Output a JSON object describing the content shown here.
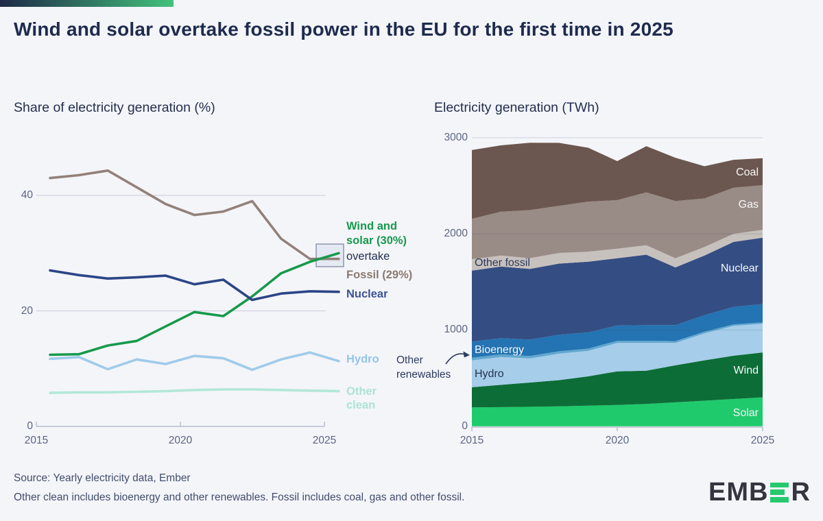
{
  "header": {
    "title": "Wind and solar overtake fossil power in the EU for the first time in 2025"
  },
  "footer": {
    "source": "Source: Yearly electricity data, Ember",
    "note": "Other clean includes bioenergy and other renewables. Fossil includes coal, gas and other fossil.",
    "logo_prefix": "EMB",
    "logo_suffix": "R"
  },
  "colors": {
    "background": "#f4f5f9",
    "title_text": "#1e2b4e",
    "axis_text": "#5a6582",
    "grid": "#d0d4df",
    "grid_overlay": "rgba(60,72,105,0.15)",
    "axis_line": "#b4bbca",
    "annotation_dark": "#2c3a5c",
    "highlight_box_fill": "#dbe1ee",
    "highlight_box_stroke": "#8089a5",
    "logo_green": "#26c96d",
    "header_gradient_start": "#1f2948",
    "header_gradient_end": "#42c27b"
  },
  "chart_data": [
    {
      "type": "line",
      "title": "Share of electricity generation (%)",
      "x": [
        2015,
        2016,
        2017,
        2018,
        2019,
        2020,
        2021,
        2022,
        2023,
        2024,
        2025
      ],
      "series": [
        {
          "name": "Fossil",
          "color": "#92817a",
          "values": [
            43.0,
            43.5,
            44.3,
            41.4,
            38.5,
            36.6,
            37.2,
            39.0,
            32.5,
            29.0,
            29.0
          ]
        },
        {
          "name": "Wind and solar",
          "color": "#179a4b",
          "values": [
            12.4,
            12.5,
            14.0,
            14.8,
            17.3,
            19.8,
            19.1,
            22.5,
            26.5,
            28.5,
            30.0
          ]
        },
        {
          "name": "Nuclear",
          "color": "#2c4586",
          "values": [
            27.0,
            26.2,
            25.6,
            25.8,
            26.1,
            24.6,
            25.4,
            21.9,
            23.0,
            23.4,
            23.3
          ]
        },
        {
          "name": "Hydro",
          "color": "#9fcbea",
          "values": [
            11.7,
            12.0,
            9.9,
            11.6,
            10.8,
            12.2,
            11.8,
            9.8,
            11.6,
            12.8,
            11.3
          ]
        },
        {
          "name": "Other clean",
          "color": "#b2e8d6",
          "values": [
            5.8,
            5.9,
            5.9,
            6.0,
            6.1,
            6.3,
            6.4,
            6.4,
            6.3,
            6.2,
            6.1
          ]
        }
      ],
      "ylim": [
        0,
        47
      ],
      "yticks": [
        0,
        20,
        40
      ],
      "ytick_labels": [
        "0",
        "20",
        "40"
      ],
      "xtick_labels": [
        "2015",
        "2020",
        "2025"
      ],
      "grid": "horizontal only",
      "legend_position": "right-of-line annotations",
      "annotations": {
        "wind_solar": "Wind and solar (30%)",
        "overtake": "overtake",
        "fossil": "Fossil (29%)",
        "nuclear": "Nuclear",
        "hydro": "Hydro",
        "other_clean": "Other clean"
      }
    },
    {
      "type": "area",
      "title": "Electricity generation (TWh)",
      "x": [
        2015,
        2016,
        2017,
        2018,
        2019,
        2020,
        2021,
        2022,
        2023,
        2024,
        2025
      ],
      "stacking": "bottom-to-top",
      "series": [
        {
          "name": "Solar",
          "color": "#1fca6c",
          "values": [
            195,
            198,
            202,
            207,
            213,
            220,
            232,
            248,
            265,
            283,
            300
          ]
        },
        {
          "name": "Wind",
          "color": "#0d6d37",
          "values": [
            210,
            232,
            252,
            272,
            305,
            350,
            345,
            385,
            420,
            450,
            467
          ]
        },
        {
          "name": "Hydro",
          "color": "#a6cde9",
          "values": [
            280,
            290,
            250,
            275,
            265,
            295,
            290,
            232,
            280,
            310,
            298
          ]
        },
        {
          "name": "Other renewables",
          "color": "#62a7cf",
          "values": [
            28,
            27,
            26,
            25,
            24,
            23,
            22,
            20,
            18,
            16,
            15
          ]
        },
        {
          "name": "Bioenergy",
          "color": "#2473b2",
          "values": [
            165,
            168,
            170,
            172,
            168,
            158,
            162,
            166,
            172,
            182,
            190
          ]
        },
        {
          "name": "Nuclear",
          "color": "#344e83",
          "values": [
            740,
            745,
            735,
            740,
            735,
            700,
            732,
            600,
            620,
            675,
            690
          ]
        },
        {
          "name": "Other fossil",
          "color": "#c7c1bd",
          "values": [
            118,
            115,
            112,
            110,
            105,
            100,
            98,
            95,
            88,
            84,
            81
          ]
        },
        {
          "name": "Gas",
          "color": "#998b85",
          "values": [
            420,
            455,
            500,
            490,
            520,
            505,
            550,
            595,
            505,
            480,
            465
          ]
        },
        {
          "name": "Coal",
          "color": "#6b574f",
          "values": [
            715,
            690,
            700,
            655,
            560,
            405,
            480,
            450,
            335,
            290,
            280
          ]
        }
      ],
      "ylim": [
        0,
        3000
      ],
      "yticks": [
        0,
        1000,
        2000,
        3000
      ],
      "ytick_labels": [
        "0",
        "1000",
        "2000",
        "3000"
      ],
      "xtick_labels": [
        "2015",
        "2020",
        "2025"
      ],
      "labels": {
        "coal": "Coal",
        "gas": "Gas",
        "other_fossil": "Other fossil",
        "nuclear": "Nuclear",
        "bioenergy": "Bioenergy",
        "hydro": "Hydro",
        "wind": "Wind",
        "solar": "Solar",
        "other_renewables": "Other renewables"
      }
    }
  ]
}
